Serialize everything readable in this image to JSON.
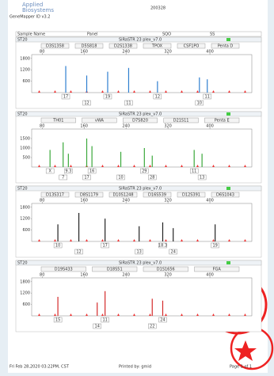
{
  "header": {
    "brand_top": "Applied",
    "brand_bottom": "Biosystems",
    "software": "GeneMapper ID v3.2",
    "code": "200328"
  },
  "info": {
    "labels": [
      "Sample Name",
      "Panel",
      "SQO",
      "SS"
    ]
  },
  "panels": [
    {
      "sample": "ST20",
      "kit": "SiRaSTR 23 plex_v7.0",
      "markers": [
        "D3S1358",
        "D5S818",
        "D2S1338",
        "TPOX",
        "CSF1PO",
        "Penta D"
      ],
      "color": "#2f7fd0",
      "xlim": [
        60,
        480
      ],
      "xticks": [
        80,
        160,
        240,
        320,
        400
      ],
      "ylim": [
        0,
        2000
      ],
      "yticks": [
        600,
        1200,
        1800
      ],
      "peaks": {
        "x": [
          125,
          165,
          205,
          245,
          300,
          380,
          395
        ],
        "y": [
          1400,
          900,
          1100,
          1300,
          600,
          800,
          700
        ]
      },
      "alleles": [
        "17",
        "12",
        "19",
        "11",
        "12",
        "10",
        "11"
      ]
    },
    {
      "sample": "ST20",
      "kit": "SiRaSTR 23 plex_v7.0",
      "markers": [
        "TH01",
        "vWA",
        "D7S820",
        "D21S11",
        "Penta E"
      ],
      "color": "#3aa83a",
      "xlim": [
        60,
        480
      ],
      "xticks": [
        80,
        160,
        240,
        320,
        400
      ],
      "ylim": [
        0,
        2000
      ],
      "yticks": [
        500,
        1000,
        1500
      ],
      "peaks": {
        "x": [
          95,
          120,
          130,
          165,
          175,
          230,
          275,
          290,
          370,
          385
        ],
        "y": [
          900,
          1300,
          700,
          1500,
          1100,
          800,
          1000,
          600,
          900,
          700
        ]
      },
      "alleles": [
        "X",
        "7",
        "9.3",
        "17",
        "16",
        "10",
        "29",
        "28",
        "11",
        "13"
      ]
    },
    {
      "sample": "ST20",
      "kit": "SiRaSTR 23 plex_v7.0",
      "markers": [
        "D13S317",
        "D8S1179",
        "D10S1248",
        "D16S539",
        "D12S391",
        "D6S1043"
      ],
      "color": "#222222",
      "xlim": [
        60,
        480
      ],
      "xticks": [
        80,
        160,
        240,
        320,
        400
      ],
      "ylim": [
        0,
        2000
      ],
      "yticks": [
        600,
        1200,
        1800
      ],
      "peaks": {
        "x": [
          110,
          150,
          200,
          265,
          310,
          330,
          410
        ],
        "y": [
          900,
          1500,
          1200,
          800,
          1000,
          700,
          900
        ]
      },
      "alleles": [
        "10",
        "12",
        "17",
        "13",
        "18.3",
        "24",
        "19"
      ]
    },
    {
      "sample": "ST20",
      "kit": "SiRaSTR 23 plex_v7.0",
      "markers": [
        "D19S433",
        "D18S51",
        "D1S1656",
        "FGA"
      ],
      "color": "#d42a2a",
      "xlim": [
        60,
        480
      ],
      "xticks": [
        80,
        160,
        240,
        320,
        400
      ],
      "ylim": [
        0,
        2000
      ],
      "yticks": [
        600,
        1200,
        1800
      ],
      "peaks": {
        "x": [
          110,
          185,
          200,
          290,
          310
        ],
        "y": [
          1000,
          700,
          1300,
          900,
          800
        ]
      },
      "alleles": [
        "15",
        "14",
        "11",
        "22",
        "24"
      ]
    }
  ],
  "footer": {
    "date": "Fri Feb 28,2020 03:22PM, CST",
    "printed": "Printed by: gmid",
    "page": "Page 1 of 1"
  }
}
